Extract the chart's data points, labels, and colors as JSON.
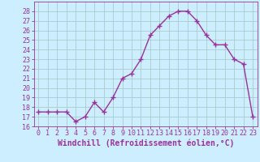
{
  "x": [
    0,
    1,
    2,
    3,
    4,
    5,
    6,
    7,
    8,
    9,
    10,
    11,
    12,
    13,
    14,
    15,
    16,
    17,
    18,
    19,
    20,
    21,
    22,
    23
  ],
  "y": [
    17.5,
    17.5,
    17.5,
    17.5,
    16.5,
    17.0,
    18.5,
    17.5,
    19.0,
    21.0,
    21.5,
    23.0,
    25.5,
    26.5,
    27.5,
    28.0,
    28.0,
    27.0,
    25.5,
    24.5,
    24.5,
    23.0,
    22.5,
    17.0
  ],
  "line_color": "#993399",
  "marker": "+",
  "marker_size": 4,
  "line_width": 1.0,
  "bg_color": "#cceeff",
  "grid_color": "#aacccc",
  "xlabel": "Windchill (Refroidissement éolien,°C)",
  "xlabel_fontsize": 7,
  "tick_fontsize": 6,
  "ylim": [
    16,
    29
  ],
  "yticks": [
    16,
    17,
    18,
    19,
    20,
    21,
    22,
    23,
    24,
    25,
    26,
    27,
    28
  ],
  "xticks": [
    0,
    1,
    2,
    3,
    4,
    5,
    6,
    7,
    8,
    9,
    10,
    11,
    12,
    13,
    14,
    15,
    16,
    17,
    18,
    19,
    20,
    21,
    22,
    23
  ],
  "xtick_labels": [
    "0",
    "1",
    "2",
    "3",
    "4",
    "5",
    "6",
    "7",
    "8",
    "9",
    "10",
    "11",
    "12",
    "13",
    "14",
    "15",
    "16",
    "17",
    "18",
    "19",
    "20",
    "21",
    "22",
    "23"
  ],
  "spine_color": "#993399",
  "axis_label_color": "#993399",
  "tick_color": "#993399"
}
